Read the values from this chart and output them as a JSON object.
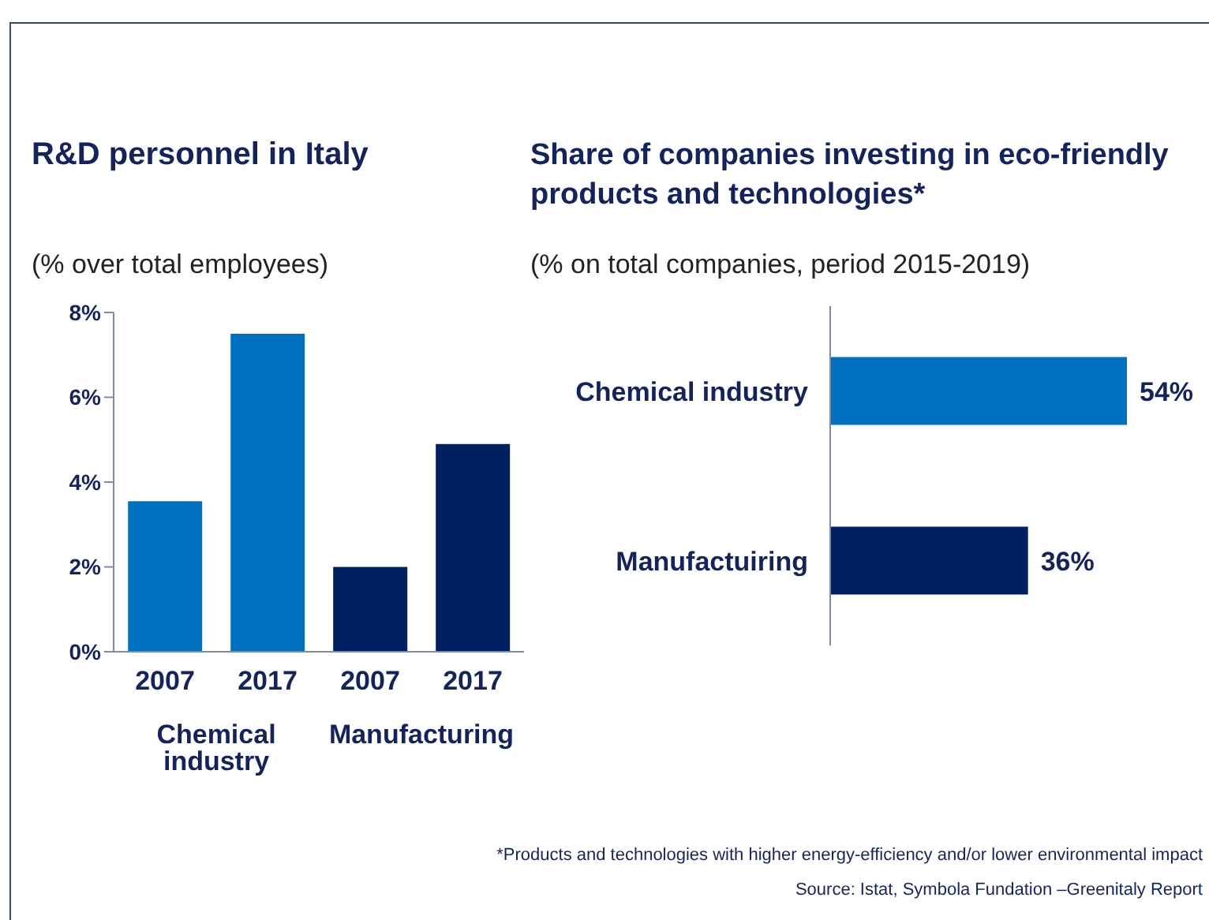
{
  "chart_data": [
    {
      "type": "bar",
      "title": "R&D personnel in Italy",
      "subtitle": "(% over total employees)",
      "categories": [
        "2007",
        "2017",
        "2007",
        "2017"
      ],
      "values": [
        3.55,
        7.5,
        2.0,
        4.9
      ],
      "colors": [
        "#0070c0",
        "#0070c0",
        "#002060",
        "#002060"
      ],
      "ylim": [
        0,
        8
      ],
      "yticks": [
        {
          "value": 0,
          "label": "0%"
        },
        {
          "value": 2,
          "label": "2%"
        },
        {
          "value": 4,
          "label": "4%"
        },
        {
          "value": 6,
          "label": "6%"
        },
        {
          "value": 8,
          "label": "8%"
        }
      ],
      "grid": false,
      "annotations": [
        "Chemical industry",
        "Manufacturing"
      ]
    },
    {
      "type": "bar",
      "orientation": "horizontal",
      "title": "Share of companies investing in eco-friendly products and technologies*",
      "subtitle": "(% on total companies, period 2015-2019)",
      "categories": [
        "Chemical industry",
        "Manufactuiring"
      ],
      "values": [
        54,
        36
      ],
      "colors": [
        "#0070c0",
        "#002060"
      ],
      "value_labels": [
        "54%",
        "36%"
      ],
      "annotations": [
        "*Products and technologies with higher energy-efficiency and/or lower environmental impact",
        "Source: Istat, Symbola Fundation –Greenitaly Report"
      ]
    }
  ]
}
